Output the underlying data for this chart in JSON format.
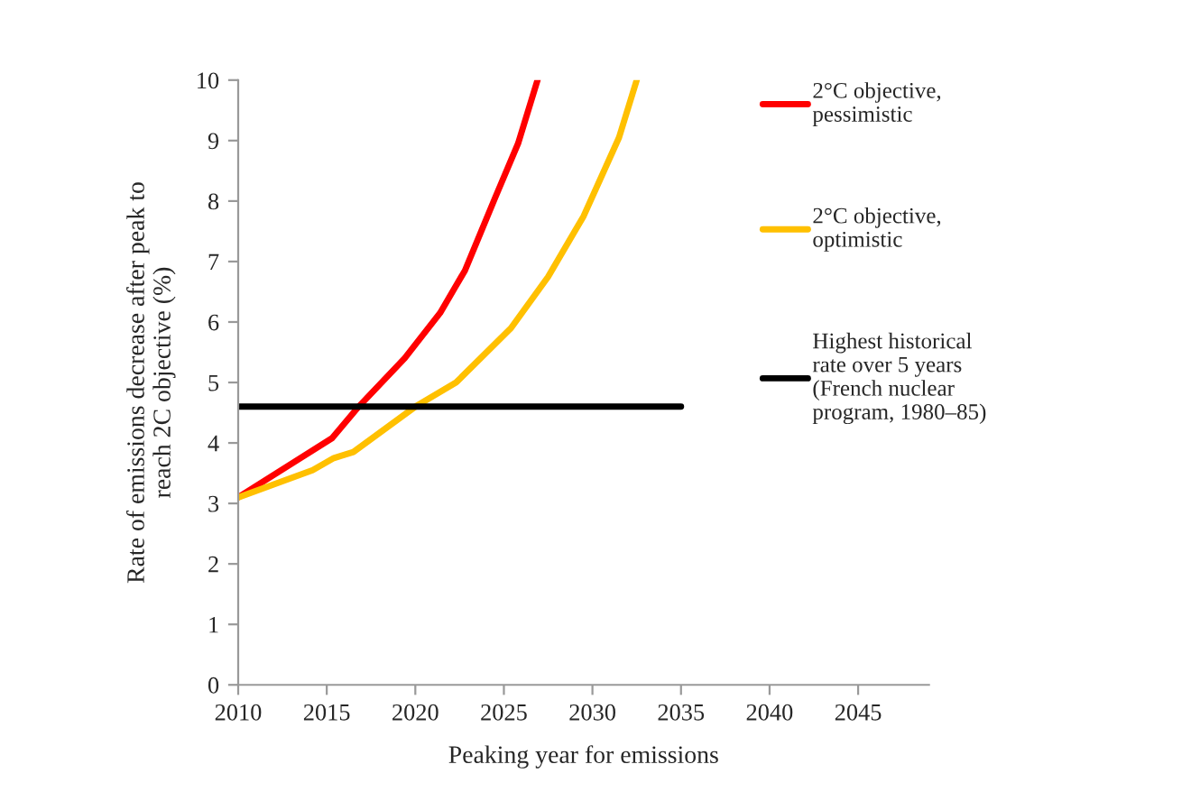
{
  "chart_data": {
    "type": "line",
    "xlabel": "Peaking year for emissions",
    "ylabel": "Rate of emissions decrease after peak to\nreach 2C objective (%)",
    "xlim": [
      2010,
      2049
    ],
    "xticks": [
      2010,
      2015,
      2020,
      2025,
      2030,
      2035,
      2040,
      2045
    ],
    "ylim": [
      0,
      10
    ],
    "yticks": [
      0,
      1,
      2,
      3,
      4,
      5,
      6,
      7,
      8,
      9,
      10
    ],
    "grid": false,
    "legend": "right",
    "marker": "none",
    "line_style": "solid",
    "series": [
      {
        "name": "2°C objective,\npessimistic",
        "color": "#ff0000",
        "x": [
          2010,
          2015.3,
          2016.8,
          2019.4,
          2021.4,
          2022.8,
          2024.5,
          2025.8,
          2026.9
        ],
        "values": [
          3.1,
          4.08,
          4.6,
          5.4,
          6.15,
          6.85,
          8.05,
          8.95,
          10
        ]
      },
      {
        "name": "2°C objective,\noptimistic",
        "color": "#ffc000",
        "x": [
          2010,
          2014.2,
          2015.4,
          2016.5,
          2020,
          2022.3,
          2025.4,
          2027.5,
          2029.5,
          2031.5,
          2032.5
        ],
        "values": [
          3.1,
          3.55,
          3.75,
          3.85,
          4.6,
          5.0,
          5.9,
          6.75,
          7.75,
          9.05,
          10
        ]
      },
      {
        "name": "Highest historical\nrate over 5 years\n(French nuclear\nprogram, 1980–85)",
        "color": "#000000",
        "x": [
          2010,
          2035
        ],
        "values": [
          4.6,
          4.6
        ]
      }
    ]
  }
}
